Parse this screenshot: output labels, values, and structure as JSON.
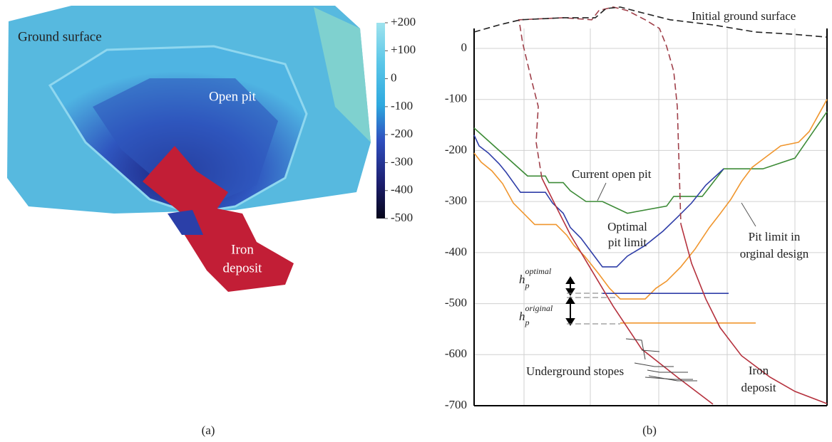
{
  "panel_a": {
    "labels": {
      "ground": "Ground surface",
      "pit": "Open pit",
      "deposit": [
        "Iron",
        "deposit"
      ]
    },
    "colorbar": {
      "lim": [
        -500,
        200
      ],
      "ticks": [
        {
          "value": 200,
          "label": "+200"
        },
        {
          "value": 100,
          "label": "+100"
        },
        0,
        -100,
        -200,
        -300,
        -400,
        -500
      ]
    },
    "caption": "(a)"
  },
  "chart_data": {
    "type": "line",
    "caption": "(b)",
    "xlim": [
      0,
      495
    ],
    "ylim": [
      -700,
      39
    ],
    "yticks": [
      0,
      -100,
      -200,
      -300,
      -400,
      -500,
      -600,
      -700
    ],
    "xgrid": [
      70,
      163,
      259,
      355,
      450
    ],
    "grid": true,
    "series": [
      {
        "color": "#3d8b37",
        "dash": false,
        "x": [
          0,
          75,
          100,
          105,
          125,
          135,
          157,
          180,
          215,
          270,
          280,
          320,
          350,
          405,
          450,
          495
        ],
        "values": [
          -156,
          -250,
          -250,
          -263,
          -263,
          -279,
          -300,
          -300,
          -323,
          -309,
          -290,
          -290,
          -236,
          -236,
          -215,
          -124
        ]
      },
      {
        "color": "#2f3ea8",
        "dash": false,
        "x": [
          0,
          7,
          20,
          35,
          45,
          65,
          100,
          110,
          125,
          135,
          150,
          165,
          180,
          200,
          215,
          240,
          265,
          285,
          305,
          325,
          350
        ],
        "values": [
          -170,
          -191,
          -205,
          -226,
          -243,
          -282,
          -282,
          -303,
          -323,
          -351,
          -372,
          -400,
          -428,
          -428,
          -407,
          -386,
          -358,
          -331,
          -303,
          -268,
          -236
        ]
      },
      {
        "color": "#f0962e",
        "dash": false,
        "x": [
          0,
          10,
          25,
          40,
          55,
          70,
          85,
          115,
          130,
          140,
          155,
          175,
          190,
          205,
          240,
          255,
          270,
          290,
          310,
          330,
          345,
          360,
          375,
          390,
          410,
          430,
          455,
          470,
          495
        ],
        "values": [
          -205,
          -223,
          -240,
          -265,
          -303,
          -324,
          -345,
          -345,
          -366,
          -386,
          -407,
          -442,
          -470,
          -491,
          -491,
          -470,
          -456,
          -428,
          -393,
          -351,
          -324,
          -296,
          -261,
          -233,
          -212,
          -191,
          -184,
          -163,
          -100
        ]
      },
      {
        "color": "#2f3ea8",
        "dash": false,
        "x": [
          180,
          357
        ],
        "values": [
          -480,
          -480
        ]
      },
      {
        "color": "#f0962e",
        "dash": false,
        "x": [
          205,
          395
        ],
        "values": [
          -538,
          -538
        ]
      },
      {
        "color": "#b5313d",
        "dash": false,
        "x": [
          95,
          115,
          135,
          165,
          195,
          235,
          285,
          335
        ],
        "values": [
          -254,
          -310,
          -365,
          -435,
          -505,
          -589,
          -644,
          -697
        ]
      },
      {
        "color": "#b5313d",
        "dash": false,
        "x": [
          290,
          305,
          325,
          345,
          375,
          415,
          450,
          495
        ],
        "values": [
          -344,
          -421,
          -491,
          -547,
          -602,
          -644,
          -672,
          -696
        ]
      },
      {
        "color": "#a0404a",
        "dash": true,
        "x": [
          95,
          87,
          90,
          80,
          68,
          63,
          125,
          165,
          175,
          195,
          215,
          240,
          260,
          270,
          280,
          285,
          290
        ],
        "values": [
          -254,
          -184,
          -114,
          -59,
          11,
          56,
          60,
          56,
          74,
          81,
          74,
          56,
          39,
          4,
          -45,
          -114,
          -344
        ]
      },
      {
        "color": "#222222",
        "dash": true,
        "x": [
          0,
          35,
          65,
          125,
          170,
          185,
          205,
          235,
          275,
          335,
          395,
          445,
          495
        ],
        "values": [
          32,
          46,
          56,
          60,
          60,
          78,
          81,
          70,
          56,
          46,
          32,
          28,
          22
        ]
      }
    ],
    "annotations": {
      "ground": "Initial ground surface",
      "current": "Current open pit",
      "optimal": [
        "Optimal",
        "pit limit"
      ],
      "original": [
        "Pit limit in",
        "orginal design"
      ],
      "deposit": [
        "Iron",
        "deposit"
      ],
      "stopes": "Underground stopes",
      "h_optimal": {
        "base": "h",
        "sub": "p",
        "sup": "optimal"
      },
      "h_original": {
        "base": "h",
        "sub": "p",
        "sup": "original"
      }
    }
  }
}
